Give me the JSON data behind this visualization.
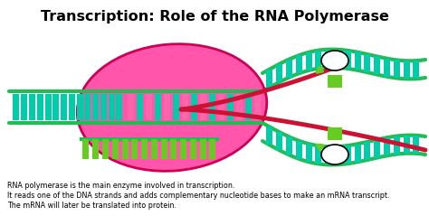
{
  "title": "Transcription: Role of the RNA Polymerase",
  "title_fontsize": 11.5,
  "title_fontweight": "bold",
  "bg_color": "#ffffff",
  "caption_lines": [
    "RNA polymerase is the main enzyme involved in transcription.",
    "It reads one of the DNA strands and adds complementary nucleotide bases to make an mRNA transcript.",
    "The mRNA will later be translated into protein."
  ],
  "caption_fontsize": 5.8,
  "dna_green": "#22bb55",
  "teal_base": "#00ccaa",
  "pink_base": "#ff66aa",
  "polymerase_fill": "#ff55aa",
  "polymerase_edge": "#cc0055",
  "mrna_color": "#cc1133",
  "ladder_green": "#66cc22",
  "white": "#ffffff",
  "black": "#000000"
}
